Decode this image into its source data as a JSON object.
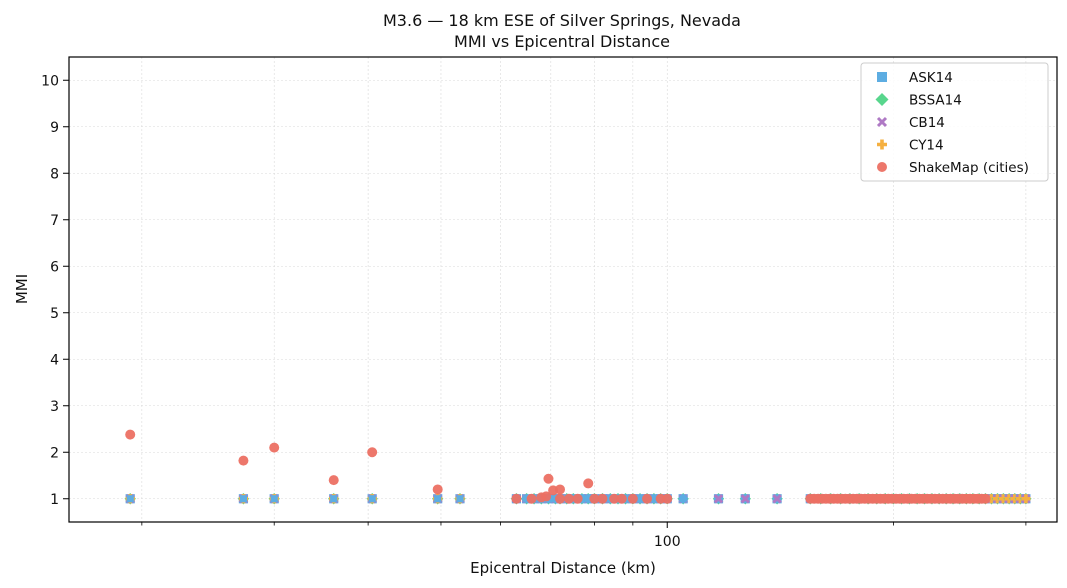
{
  "chart_data": {
    "type": "scatter",
    "title": "M3.6 — 18 km ESE of Silver Springs, Nevada",
    "subtitle": "MMI vs Epicentral Distance",
    "xlabel": "Epicentral Distance (km)",
    "ylabel": "MMI",
    "xscale": "log",
    "xlim": [
      16,
      330
    ],
    "ylim": [
      0.5,
      10.5
    ],
    "x_tick_labels": [
      {
        "value": 100,
        "label": "100"
      }
    ],
    "y_ticks": [
      1,
      2,
      3,
      4,
      5,
      6,
      7,
      8,
      9,
      10
    ],
    "grid": true,
    "legend_position": "top-right",
    "series": [
      {
        "name": "ASK14",
        "marker": "square",
        "color": "#5DADE2",
        "x": [],
        "y": []
      },
      {
        "name": "BSSA14",
        "marker": "diamond",
        "color": "#58D68D",
        "x": [],
        "y": []
      },
      {
        "name": "CB14",
        "marker": "x",
        "color": "#AF7AC5",
        "x": [],
        "y": []
      },
      {
        "name": "CY14",
        "marker": "plus",
        "color": "#F5B041",
        "x": [],
        "y": []
      },
      {
        "name": "ShakeMap (cities)",
        "marker": "circle",
        "color": "#EC7063",
        "x": [
          19.3,
          27.3,
          30,
          36,
          40.5,
          49.5,
          68,
          69,
          69.5,
          70.5,
          72,
          78.5
        ],
        "y": [
          2.38,
          1.82,
          2.1,
          1.4,
          2.0,
          1.2,
          1.03,
          1.05,
          1.43,
          1.18,
          1.2,
          1.33
        ]
      }
    ],
    "gmpe_distances_km": [
      19.3,
      27.3,
      30,
      36,
      40.5,
      49.5,
      53,
      63,
      65,
      66.5,
      68,
      69.5,
      71,
      72,
      73.5,
      75,
      77,
      78.5,
      80,
      82,
      84,
      86,
      88,
      90,
      92,
      94,
      96,
      98,
      100,
      105,
      117,
      127,
      140,
      155,
      160,
      165,
      170,
      175,
      180,
      185,
      190,
      195,
      200,
      205,
      210,
      215,
      220,
      225,
      230,
      235,
      240,
      245,
      250,
      255,
      260,
      265,
      270,
      275,
      280,
      285,
      290,
      295,
      300
    ],
    "gmpe_mmi": 1.0,
    "shakemap_cluster": {
      "min_km": 155,
      "max_km": 268,
      "mmi": 1.0
    }
  }
}
